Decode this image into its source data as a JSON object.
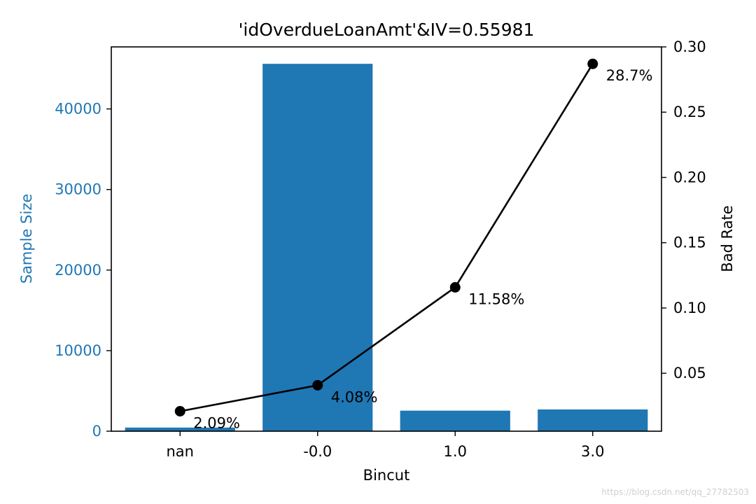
{
  "chart_data": {
    "type": "bar",
    "title": "'idOverdueLoanAmt'&IV=0.55981",
    "xlabel": "Bincut",
    "ylabel_left": "Sample Size",
    "ylabel_right": "Bad Rate",
    "categories": [
      "nan",
      "-0.0",
      "1.0",
      "3.0"
    ],
    "series": [
      {
        "values": [
          450,
          45600,
          2550,
          2700
        ],
        "axis": "left",
        "kind": "bar"
      },
      {
        "values": [
          0.0209,
          0.0408,
          0.1158,
          0.287
        ],
        "axis": "right",
        "kind": "line"
      }
    ],
    "bad_rate_labels": [
      "2.09%",
      "4.08%",
      "11.58%",
      "28.7%"
    ],
    "ylim_left": [
      0,
      47700
    ],
    "ylim_right": [
      0.0056,
      0.3
    ],
    "yticks_left": [
      0,
      10000,
      20000,
      30000,
      40000
    ],
    "yticks_right": [
      0.05,
      0.1,
      0.15,
      0.2,
      0.25,
      0.3
    ],
    "yticks_right_labels": [
      "0.05",
      "0.10",
      "0.15",
      "0.20",
      "0.25",
      "0.30"
    ],
    "grid": false,
    "colors": {
      "bar": "#1f77b4",
      "line": "#000000",
      "left_axis_text": "#1f77b4"
    }
  },
  "watermark": "https://blog.csdn.net/qq_27782503"
}
